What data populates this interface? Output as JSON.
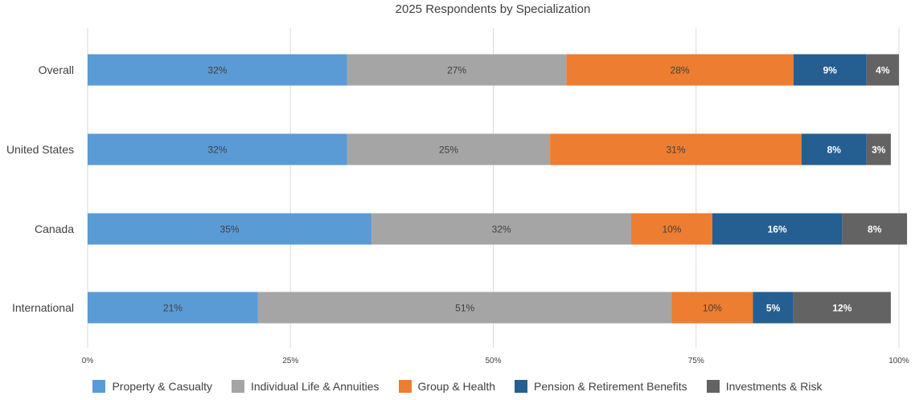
{
  "chart_data": {
    "type": "bar",
    "orientation": "horizontal",
    "stacked": true,
    "title": "2025 Respondents by Specialization",
    "categories": [
      "Overall",
      "United States",
      "Canada",
      "International"
    ],
    "xlim": [
      0,
      100
    ],
    "xticks": [
      "0%",
      "25%",
      "50%",
      "75%",
      "100%"
    ],
    "grid": true,
    "legend_position": "bottom",
    "series": [
      {
        "name": "Property & Casualty",
        "color": "#5B9BD5",
        "label_color": "#404040",
        "values": [
          32,
          32,
          35,
          21
        ],
        "labels": [
          "32%",
          "32%",
          "35%",
          "21%"
        ]
      },
      {
        "name": "Individual Life & Annuities",
        "color": "#A5A5A5",
        "label_color": "#404040",
        "values": [
          27,
          25,
          32,
          51
        ],
        "labels": [
          "27%",
          "25%",
          "32%",
          "51%"
        ]
      },
      {
        "name": "Group & Health",
        "color": "#ED7D31",
        "label_color": "#404040",
        "values": [
          28,
          31,
          10,
          10
        ],
        "labels": [
          "28%",
          "31%",
          "10%",
          "10%"
        ]
      },
      {
        "name": "Pension & Retirement Benefits",
        "color": "#255E91",
        "label_color": "#ffffff",
        "values": [
          9,
          8,
          16,
          5
        ],
        "labels": [
          "9%",
          "8%",
          "16%",
          "5%"
        ]
      },
      {
        "name": "Investments & Risk",
        "color": "#636363",
        "label_color": "#ffffff",
        "values": [
          4,
          3,
          8,
          12
        ],
        "labels": [
          "4%",
          "3%",
          "8%",
          "12%"
        ]
      }
    ]
  }
}
